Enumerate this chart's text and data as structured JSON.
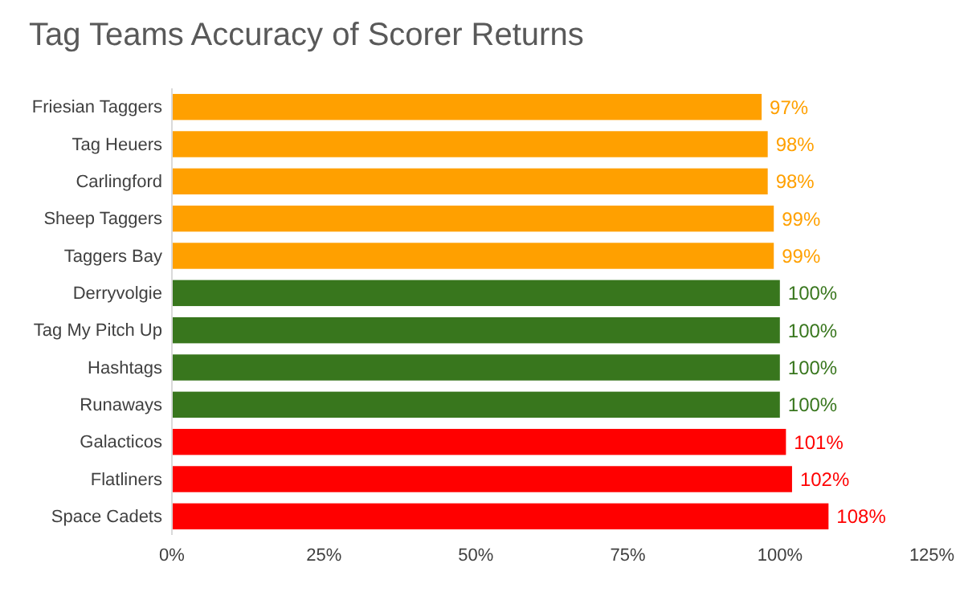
{
  "chart_data": {
    "type": "bar",
    "orientation": "horizontal",
    "title": "Tag Teams Accuracy of Scorer Returns",
    "categories": [
      "Friesian Taggers",
      "Tag Heuers",
      "Carlingford",
      "Sheep Taggers",
      "Taggers Bay",
      "Derryvolgie",
      "Tag My Pitch Up",
      "Hashtags",
      "Runaways",
      "Galacticos",
      "Flatliners",
      "Space Cadets"
    ],
    "values": [
      97,
      98,
      98,
      99,
      99,
      100,
      100,
      100,
      100,
      101,
      102,
      108
    ],
    "colors": [
      "#ffa000",
      "#ffa000",
      "#ffa000",
      "#ffa000",
      "#ffa000",
      "#38761d",
      "#38761d",
      "#38761d",
      "#38761d",
      "#ff0000",
      "#ff0000",
      "#ff0000"
    ],
    "value_labels": [
      "97%",
      "98%",
      "98%",
      "99%",
      "99%",
      "100%",
      "100%",
      "100%",
      "100%",
      "101%",
      "102%",
      "108%"
    ],
    "xlim": [
      0,
      125
    ],
    "xticks": [
      {
        "value": 0,
        "label": "0%"
      },
      {
        "value": 25,
        "label": "25%"
      },
      {
        "value": 50,
        "label": "50%"
      },
      {
        "value": 75,
        "label": "75%"
      },
      {
        "value": 100,
        "label": "100%"
      },
      {
        "value": 125,
        "label": "125%"
      }
    ]
  }
}
